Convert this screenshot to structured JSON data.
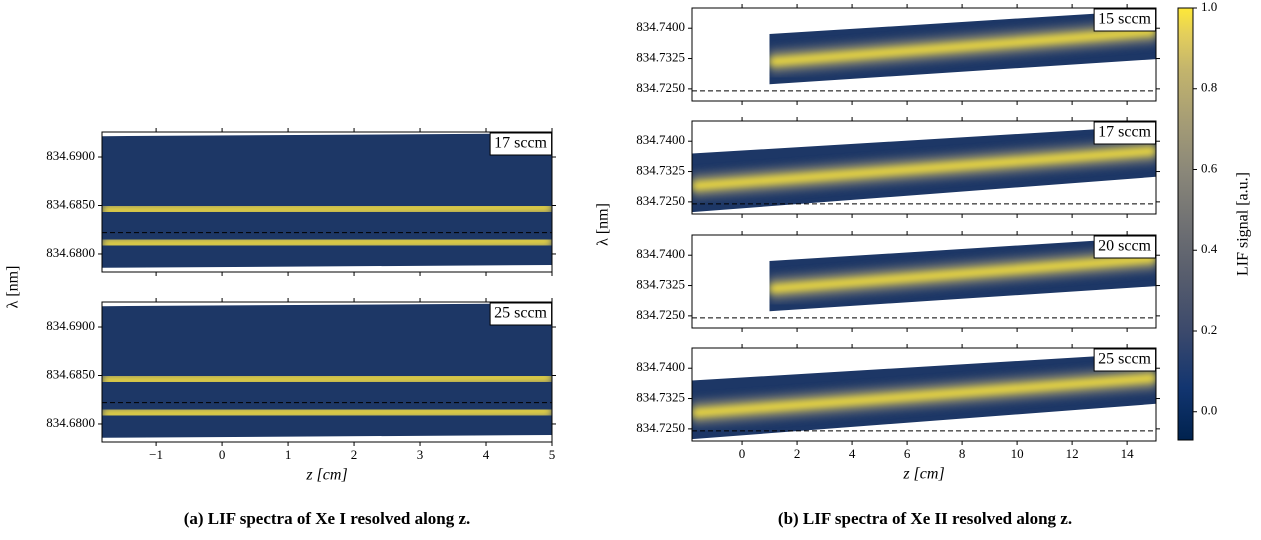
{
  "panel_a": {
    "caption": "(a) LIF spectra of Xe I resolved along z.",
    "xlabel": "z [cm]",
    "ylabel": "λ [nm]",
    "xlim": [
      -1.82,
      5
    ],
    "xticks": [
      {
        "value": -1,
        "label": "−1"
      },
      0,
      1,
      2,
      3,
      4,
      5
    ],
    "ylim": [
      834.67814,
      834.69258
    ],
    "yticks": [
      {
        "value": 834.68,
        "label": "834.6800"
      },
      {
        "value": 834.685,
        "label": "834.6850"
      },
      {
        "value": 834.69,
        "label": "834.6900"
      }
    ],
    "subplots": [
      {
        "label": "17 sccm",
        "reference": 834.6822
      },
      {
        "label": "25 sccm",
        "reference": 834.6822
      }
    ]
  },
  "panel_b": {
    "caption": "(b) LIF spectra of Xe II resolved along z.",
    "xlabel": "z [cm]",
    "ylabel": "λ [nm]",
    "xlim": [
      -1.82,
      15.05
    ],
    "xticks": [
      0,
      2,
      4,
      6,
      8,
      10,
      12,
      14
    ],
    "ylim": [
      834.722,
      834.745
    ],
    "yticks": [
      {
        "value": 834.725,
        "label": "834.7250"
      },
      {
        "value": 834.7325,
        "label": "834.7325"
      },
      {
        "value": 834.74,
        "label": "834.7400"
      }
    ],
    "subplots": [
      {
        "label": "15 sccm",
        "reference": 834.7245
      },
      {
        "label": "17 sccm",
        "reference": 834.7245
      },
      {
        "label": "20 sccm",
        "reference": 834.7245
      },
      {
        "label": "25 sccm",
        "reference": 834.7245
      }
    ]
  },
  "colorbar": {
    "label": "LIF signal [a.u.]",
    "clim": [
      -0.07,
      1.0
    ],
    "ticks": [
      {
        "value": 0,
        "label": "0.0"
      },
      0.2,
      0.4,
      0.6,
      0.8,
      {
        "value": 1,
        "label": "1.0"
      }
    ]
  }
}
